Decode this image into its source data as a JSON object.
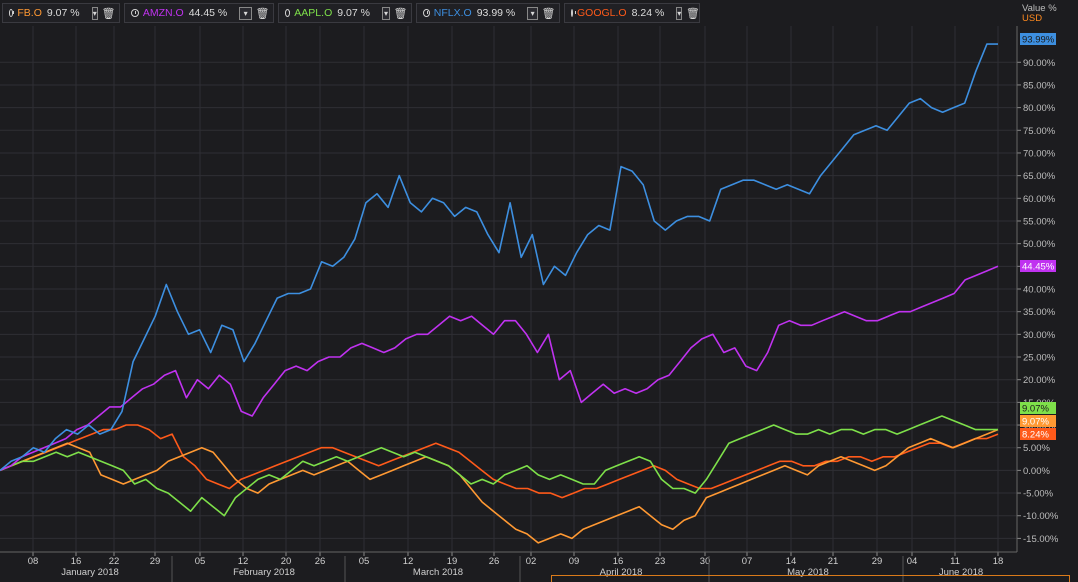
{
  "legend": [
    {
      "ticker": "FB.O",
      "value": "9.07 %",
      "color": "#ff9933"
    },
    {
      "ticker": "AMZN.O",
      "value": "44.45 %",
      "color": "#c032f0"
    },
    {
      "ticker": "AAPL.O",
      "value": "9.07 %",
      "color": "#7ee04a"
    },
    {
      "ticker": "NFLX.O",
      "value": "93.99 %",
      "color": "#3d8fe0"
    },
    {
      "ticker": "GOOGL.O",
      "value": "8.24 %",
      "color": "#ff5a1a"
    }
  ],
  "axis": {
    "unit_label": "Value %",
    "currency": "USD"
  },
  "chart_data": {
    "type": "line",
    "title": "",
    "xlabel": "",
    "ylabel": "Value %",
    "ylim": [
      -15,
      95
    ],
    "y_ticks": [
      "-15.00%",
      "-10.00%",
      "-5.00%",
      "0.00%",
      "5.00%",
      "10.00%",
      "15.00%",
      "20.00%",
      "25.00%",
      "30.00%",
      "35.00%",
      "40.00%",
      "45.00%",
      "50.00%",
      "55.00%",
      "60.00%",
      "65.00%",
      "70.00%",
      "75.00%",
      "80.00%",
      "85.00%",
      "90.00%"
    ],
    "x_ticks": [
      "08",
      "16",
      "22",
      "29",
      "05",
      "12",
      "20",
      "26",
      "05",
      "12",
      "19",
      "26",
      "02",
      "09",
      "16",
      "23",
      "30",
      "07",
      "14",
      "21",
      "29",
      "04",
      "11",
      "18"
    ],
    "month_labels": [
      "January 2018",
      "February 2018",
      "March 2018",
      "April 2018",
      "May 2018",
      "June 2018"
    ],
    "grid": true,
    "series": [
      {
        "name": "NFLX.O",
        "color": "#3d8fe0",
        "end_label": "93.99%",
        "values": [
          0,
          2,
          3,
          5,
          4,
          7,
          9,
          8,
          10,
          8,
          9,
          13,
          24,
          29,
          34,
          41,
          35,
          30,
          31,
          26,
          32,
          31,
          24,
          28,
          33,
          38,
          39,
          39,
          40,
          46,
          45,
          47,
          51,
          59,
          61,
          58,
          65,
          59,
          57,
          60,
          59,
          56,
          58,
          57,
          52,
          48,
          59,
          47,
          52,
          41,
          45,
          43,
          48,
          52,
          54,
          53,
          67,
          66,
          63,
          55,
          53,
          55,
          56,
          56,
          55,
          62,
          63,
          64,
          64,
          63,
          62,
          63,
          62,
          61,
          65,
          68,
          71,
          74,
          75,
          76,
          75,
          78,
          81,
          82,
          80,
          79,
          80,
          81,
          88,
          94,
          94
        ]
      },
      {
        "name": "AMZN.O",
        "color": "#c032f0",
        "end_label": "44.45%",
        "values": [
          0,
          1,
          3,
          4,
          5,
          6,
          7,
          9,
          10,
          12,
          14,
          14,
          16,
          18,
          19,
          21,
          22,
          16,
          20,
          18,
          21,
          19,
          13,
          12,
          16,
          19,
          22,
          23,
          22,
          24,
          25,
          25,
          27,
          28,
          27,
          26,
          27,
          29,
          30,
          30,
          32,
          34,
          33,
          34,
          32,
          30,
          33,
          33,
          30,
          26,
          30,
          20,
          22,
          15,
          17,
          19,
          17,
          18,
          17,
          18,
          20,
          21,
          24,
          27,
          29,
          30,
          26,
          27,
          23,
          22,
          26,
          32,
          33,
          32,
          32,
          33,
          34,
          35,
          34,
          33,
          33,
          34,
          35,
          35,
          36,
          37,
          38,
          39,
          42,
          43,
          44,
          45
        ]
      },
      {
        "name": "AAPL.O",
        "color": "#7ee04a",
        "end_label": "9.07%",
        "values": [
          0,
          1,
          2,
          2,
          3,
          4,
          3,
          4,
          3,
          2,
          1,
          0,
          -3,
          -2,
          -4,
          -5,
          -7,
          -9,
          -6,
          -8,
          -10,
          -6,
          -4,
          -2,
          -1,
          -2,
          0,
          2,
          1,
          2,
          3,
          2,
          3,
          4,
          5,
          4,
          3,
          4,
          3,
          2,
          1,
          -1,
          -3,
          -2,
          -3,
          -1,
          0,
          1,
          -1,
          -2,
          -1,
          -2,
          -3,
          -3,
          0,
          1,
          2,
          3,
          2,
          -2,
          -4,
          -4,
          -5,
          -2,
          2,
          6,
          7,
          8,
          9,
          10,
          9,
          8,
          8,
          9,
          8,
          9,
          9,
          8,
          9,
          9,
          8,
          9,
          10,
          11,
          12,
          11,
          10,
          9,
          9,
          9
        ]
      },
      {
        "name": "FB.O",
        "color": "#ff9933",
        "end_label": "9.07%",
        "values": [
          0,
          1,
          2,
          3,
          4,
          5,
          6,
          5,
          4,
          -1,
          -2,
          -3,
          -2,
          -1,
          0,
          2,
          3,
          4,
          5,
          4,
          1,
          -2,
          -4,
          -5,
          -3,
          -2,
          -1,
          0,
          -1,
          0,
          1,
          2,
          0,
          -2,
          -1,
          0,
          1,
          2,
          3,
          2,
          1,
          -1,
          -4,
          -7,
          -9,
          -11,
          -13,
          -14,
          -16,
          -15,
          -14,
          -15,
          -13,
          -12,
          -11,
          -10,
          -9,
          -8,
          -10,
          -12,
          -13,
          -11,
          -10,
          -6,
          -5,
          -4,
          -3,
          -2,
          -1,
          0,
          1,
          0,
          -1,
          1,
          2,
          3,
          2,
          1,
          0,
          1,
          3,
          5,
          6,
          7,
          6,
          5,
          6,
          7,
          8,
          9
        ]
      },
      {
        "name": "GOOGL.O",
        "color": "#ff5a1a",
        "end_label": "8.24%",
        "values": [
          0,
          1,
          2,
          3,
          4,
          5,
          6,
          7,
          8,
          9,
          9,
          10,
          10,
          9,
          7,
          8,
          3,
          1,
          -2,
          -3,
          -4,
          -2,
          -1,
          0,
          1,
          2,
          3,
          4,
          5,
          5,
          4,
          3,
          2,
          1,
          2,
          3,
          4,
          5,
          6,
          5,
          4,
          2,
          0,
          -2,
          -3,
          -4,
          -4,
          -5,
          -5,
          -6,
          -5,
          -4,
          -4,
          -3,
          -2,
          -1,
          0,
          1,
          0,
          -2,
          -3,
          -4,
          -4,
          -3,
          -2,
          -1,
          0,
          1,
          2,
          2,
          1,
          1,
          2,
          2,
          3,
          3,
          2,
          3,
          3,
          4,
          5,
          6,
          6,
          5,
          6,
          7,
          7,
          8
        ]
      }
    ]
  }
}
